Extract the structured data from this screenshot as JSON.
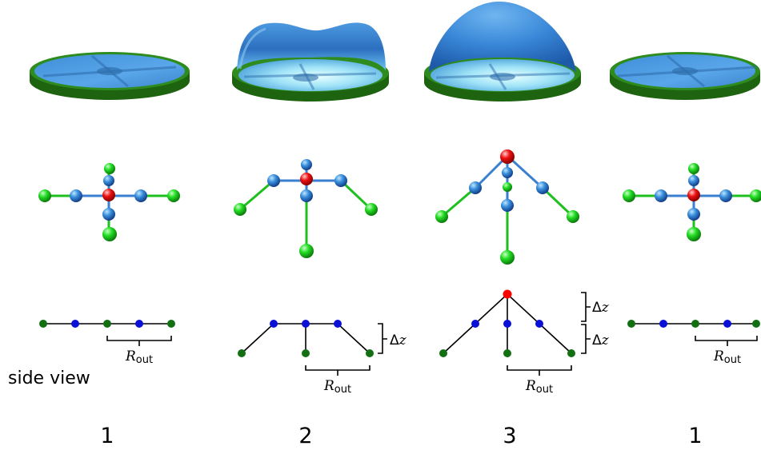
{
  "side_view_label": "side view",
  "stages": [
    {
      "number": "1"
    },
    {
      "number": "2"
    },
    {
      "number": "3"
    },
    {
      "number": "1"
    }
  ],
  "r_out": {
    "base": "R",
    "sub": "out"
  },
  "delta_z": "Δz",
  "colors": {
    "rim_green": "#2e8b1e",
    "rim_green_dark": "#1d6310",
    "membrane_blue": "#3d8fd6",
    "atom_green": "#22dd22",
    "atom_blue": "#2f7fd0",
    "atom_red": "#ee1111",
    "side_green": "#127012",
    "side_blue": "#0a10d8",
    "side_red": "#ff0000"
  }
}
